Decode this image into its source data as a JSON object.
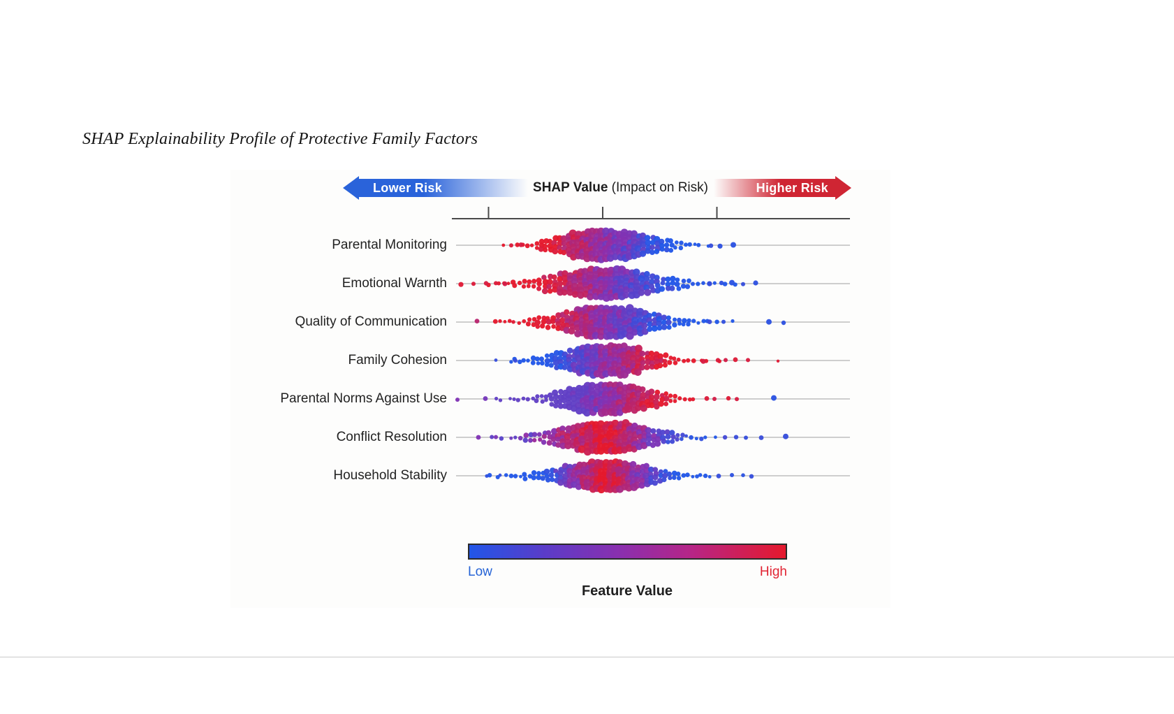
{
  "page": {
    "title": "SHAP Explainability Profile of Protective Family Factors"
  },
  "chart_data": {
    "type": "scatter",
    "variant": "shap-beeswarm-summary",
    "title": "SHAP Explainability Profile of Protective Family Factors",
    "x_axis": {
      "label_bold": "SHAP Value",
      "label_rest": " (Impact on Risk)",
      "left_arrow_label": "Lower Risk",
      "right_arrow_label": "Higher Risk",
      "tick_values": [
        -1,
        0,
        1
      ],
      "numeric_labels_shown": false
    },
    "colorbar": {
      "label": "Feature Value",
      "low_label": "Low",
      "high_label": "High",
      "low_color": "#2156e8",
      "mid_color": "#8b2fae",
      "high_color": "#e5192d"
    },
    "points_per_row_approx": 135,
    "outlier_note": "outliers: [dx_px_from_swarm_center, feature_value_0to1, radius_px]",
    "features": [
      {
        "name": "Parental Monitoring",
        "color_pattern": "red_left",
        "seed": 1,
        "spread": 0.98,
        "outliers": [
          [
            -136,
            0.95,
            3
          ],
          [
            -122,
            0.92,
            3.4
          ],
          [
            150,
            0.1,
            3.2
          ],
          [
            163,
            0.06,
            3.6
          ],
          [
            182,
            0.05,
            4
          ]
        ]
      },
      {
        "name": "Emotional Warnth",
        "color_pattern": "red_left",
        "seed": 2,
        "spread": 1.08,
        "outliers": [
          [
            -208,
            0.97,
            3.6
          ],
          [
            -190,
            0.95,
            3
          ],
          [
            -172,
            0.92,
            3.2
          ],
          [
            -158,
            0.95,
            3
          ],
          [
            -145,
            0.9,
            3.4
          ],
          [
            148,
            0.1,
            3.6
          ],
          [
            165,
            0.06,
            3.2
          ],
          [
            180,
            0.05,
            4
          ],
          [
            196,
            0.1,
            3
          ],
          [
            214,
            0.06,
            3.6
          ]
        ]
      },
      {
        "name": "Quality of Communication",
        "color_pattern": "red_left",
        "seed": 3,
        "spread": 1.02,
        "outliers": [
          [
            -185,
            0.75,
            3.4
          ],
          [
            148,
            0.12,
            3.4
          ],
          [
            168,
            0.08,
            3
          ],
          [
            233,
            0.05,
            4
          ],
          [
            254,
            0.06,
            3.2
          ]
        ]
      },
      {
        "name": "Family Cohesion",
        "color_pattern": "red_right",
        "seed": 4,
        "spread": 0.96,
        "outliers": [
          [
            -158,
            0.1,
            2.4
          ],
          [
            -130,
            0.12,
            3
          ],
          [
            139,
            0.92,
            3.6
          ],
          [
            160,
            0.95,
            3.2
          ],
          [
            171,
            0.9,
            3
          ],
          [
            185,
            0.96,
            3.4
          ],
          [
            203,
            0.93,
            3
          ],
          [
            246,
            0.97,
            2.2
          ]
        ]
      },
      {
        "name": "Parental Norms Against Use",
        "color_pattern": "red_right_purple_left",
        "seed": 5,
        "spread": 0.97,
        "outliers": [
          [
            -213,
            0.45,
            3
          ],
          [
            -173,
            0.4,
            3.4
          ],
          [
            144,
            0.95,
            3.4
          ],
          [
            155,
            0.9,
            3
          ],
          [
            175,
            0.96,
            3.2
          ],
          [
            187,
            0.92,
            3
          ],
          [
            240,
            0.05,
            4
          ]
        ]
      },
      {
        "name": "Conflict Resolution",
        "color_pattern": "red_center_blue_right",
        "seed": 6,
        "spread": 1.0,
        "outliers": [
          [
            -183,
            0.45,
            3.4
          ],
          [
            -158,
            0.42,
            3
          ],
          [
            186,
            0.12,
            3.2
          ],
          [
            200,
            0.1,
            3
          ],
          [
            222,
            0.12,
            3.4
          ],
          [
            257,
            0.1,
            4
          ]
        ]
      },
      {
        "name": "Household Stability",
        "color_pattern": "red_center",
        "seed": 7,
        "spread": 0.95,
        "outliers": [
          [
            -171,
            0.06,
            2.6
          ],
          [
            -152,
            0.08,
            2.4
          ],
          [
            161,
            0.1,
            3.4
          ],
          [
            180,
            0.06,
            3
          ],
          [
            196,
            0.05,
            2.8
          ],
          [
            208,
            0.1,
            3.2
          ]
        ]
      }
    ]
  },
  "colors": {
    "arrow_blue": "#2a63da",
    "arrow_red": "#cf2533",
    "axis": "#4a4a4a",
    "row_line": "#b3b3b3",
    "label": "#222222",
    "header_text": "#1d1d1d",
    "low_label": "#2563d6",
    "high_label": "#e12433"
  }
}
